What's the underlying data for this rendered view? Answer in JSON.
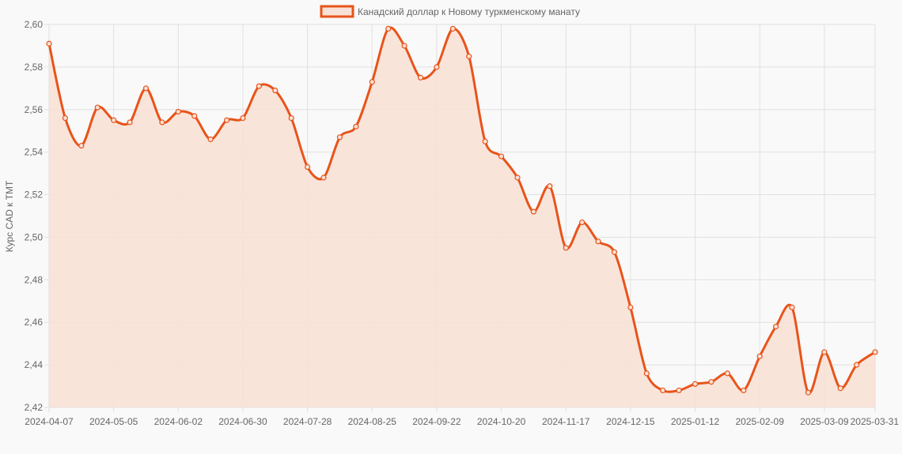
{
  "chart_data": {
    "type": "area",
    "legend": {
      "label": "Канадский доллар к Новому туркменскому манату",
      "placement": "top"
    },
    "ylabel": "Курс CAD к TMT",
    "xlabel": "",
    "ylim": [
      2.42,
      2.6
    ],
    "y_ticks": [
      "2,42",
      "2,44",
      "2,46",
      "2,48",
      "2,50",
      "2,52",
      "2,54",
      "2,56",
      "2,58",
      "2,60"
    ],
    "x_ticks": [
      "2024-04-07",
      "2024-05-05",
      "2024-06-02",
      "2024-06-30",
      "2024-07-28",
      "2024-08-25",
      "2024-09-22",
      "2024-10-20",
      "2024-11-17",
      "2024-12-15",
      "2025-01-12",
      "2025-02-09",
      "2025-03-09",
      "2025-03-31"
    ],
    "grid": true,
    "colors": {
      "line": "#e8541a",
      "fill": "#f8e1d6",
      "grid": "#e0e0e0"
    },
    "series": [
      {
        "name": "Канадский доллар к Новому туркменскому манату",
        "x": [
          "2024-04-07",
          "2024-04-14",
          "2024-04-21",
          "2024-04-28",
          "2024-05-05",
          "2024-05-12",
          "2024-05-19",
          "2024-05-26",
          "2024-06-02",
          "2024-06-09",
          "2024-06-16",
          "2024-06-23",
          "2024-06-30",
          "2024-07-07",
          "2024-07-14",
          "2024-07-21",
          "2024-07-28",
          "2024-08-04",
          "2024-08-11",
          "2024-08-18",
          "2024-08-25",
          "2024-09-01",
          "2024-09-08",
          "2024-09-15",
          "2024-09-22",
          "2024-09-29",
          "2024-10-06",
          "2024-10-13",
          "2024-10-20",
          "2024-10-27",
          "2024-11-03",
          "2024-11-10",
          "2024-11-17",
          "2024-11-24",
          "2024-12-01",
          "2024-12-08",
          "2024-12-15",
          "2024-12-22",
          "2024-12-29",
          "2025-01-05",
          "2025-01-12",
          "2025-01-19",
          "2025-01-26",
          "2025-02-02",
          "2025-02-09",
          "2025-02-16",
          "2025-02-23",
          "2025-03-02",
          "2025-03-09",
          "2025-03-16",
          "2025-03-23",
          "2025-03-31"
        ],
        "values": [
          2.591,
          2.556,
          2.543,
          2.561,
          2.555,
          2.554,
          2.57,
          2.554,
          2.559,
          2.557,
          2.546,
          2.555,
          2.556,
          2.571,
          2.569,
          2.556,
          2.533,
          2.528,
          2.547,
          2.552,
          2.573,
          2.598,
          2.59,
          2.575,
          2.58,
          2.598,
          2.585,
          2.545,
          2.538,
          2.528,
          2.512,
          2.524,
          2.495,
          2.507,
          2.498,
          2.493,
          2.467,
          2.436,
          2.428,
          2.428,
          2.431,
          2.432,
          2.436,
          2.428,
          2.444,
          2.458,
          2.467,
          2.427,
          2.446,
          2.429,
          2.44,
          2.446
        ]
      }
    ]
  }
}
